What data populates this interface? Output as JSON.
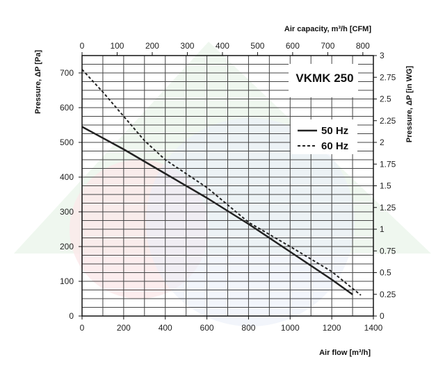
{
  "chart_data": {
    "type": "line",
    "title": "VKMK 250",
    "xlabel": "Air flow [m³/h]",
    "ylabel": "Pressure, ΔP [Pa]",
    "x2label": "Air capacity, m³/h [CFM]",
    "y2label": "Pressure, ΔP [in WG]",
    "xlim": [
      0,
      1400
    ],
    "ylim": [
      0,
      750
    ],
    "x2lim": [
      0,
      830
    ],
    "y2lim": [
      0,
      3
    ],
    "x_ticks": [
      "0",
      "200",
      "400",
      "600",
      "800",
      "1000",
      "1200",
      "1400"
    ],
    "y_ticks": [
      "0",
      "100",
      "200",
      "300",
      "400",
      "500",
      "600",
      "700"
    ],
    "x2_ticks": [
      "0",
      "100",
      "200",
      "300",
      "400",
      "500",
      "600",
      "700",
      "800"
    ],
    "y2_ticks": [
      "0",
      "0.25",
      "0.5",
      "0.75",
      "1",
      "1.25",
      "1.5",
      "1.75",
      "2",
      "2.25",
      "2.5",
      "2.75",
      "3"
    ],
    "grid": true,
    "legend_position": "top-right",
    "series": [
      {
        "name": "50 Hz",
        "style": "solid",
        "x": [
          0,
          200,
          400,
          600,
          800,
          1000,
          1200,
          1300
        ],
        "y": [
          545,
          480,
          410,
          340,
          265,
          185,
          105,
          62
        ]
      },
      {
        "name": "60 Hz",
        "style": "dashed",
        "x": [
          0,
          100,
          200,
          300,
          400,
          500,
          600,
          700,
          800,
          1000,
          1200,
          1340
        ],
        "y": [
          710,
          645,
          575,
          505,
          450,
          410,
          370,
          320,
          270,
          200,
          128,
          60
        ]
      }
    ]
  }
}
